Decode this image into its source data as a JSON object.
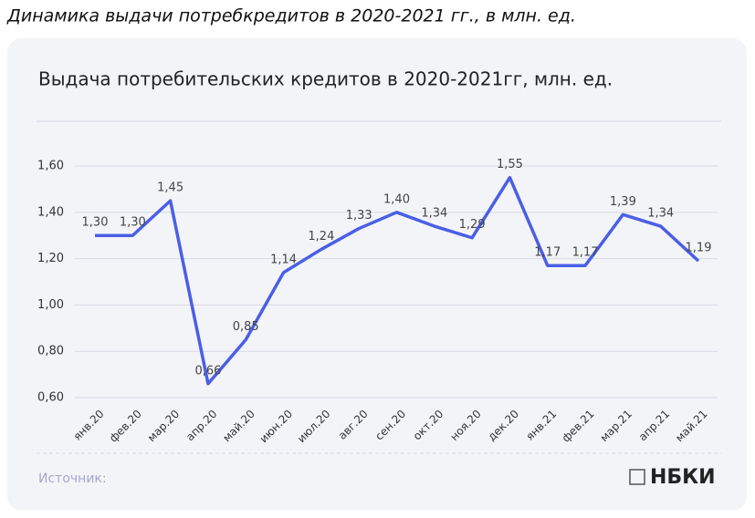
{
  "page_title": "Динамика выдачи потребкредитов в 2020-2021 гг., в млн. ед.",
  "source": "Источник:",
  "logo": "НБКИ",
  "chart_data": {
    "type": "line",
    "title": "Выдача потребительских кредитов  в 2020-2021гг,  млн. ед.",
    "categories": [
      "янв.20",
      "фев.20",
      "мар.20",
      "апр.20",
      "май.20",
      "июн.20",
      "июл.20",
      "авг.20",
      "сен.20",
      "окт.20",
      "ноя.20",
      "дек.20",
      "янв.21",
      "фев.21",
      "мар.21",
      "апр.21",
      "май.21"
    ],
    "values": [
      1.3,
      1.3,
      1.45,
      0.66,
      0.85,
      1.14,
      1.24,
      1.33,
      1.4,
      1.34,
      1.29,
      1.55,
      1.17,
      1.17,
      1.39,
      1.34,
      1.19
    ],
    "value_labels": [
      "1,30",
      "1,30",
      "1,45",
      "0,66",
      "0,85",
      "1,14",
      "1,24",
      "1,33",
      "1,40",
      "1,34",
      "1,29",
      "1,55",
      "1,17",
      "1,17",
      "1,39",
      "1,34",
      "1,19"
    ],
    "color": "#4a5fe6",
    "ylim": [
      0.6,
      1.6
    ],
    "yticks": [
      {
        "value": 0.6,
        "label": "0,60"
      },
      {
        "value": 0.8,
        "label": "0,80"
      },
      {
        "value": 1.0,
        "label": "1,00"
      },
      {
        "value": 1.2,
        "label": "1,20"
      },
      {
        "value": 1.4,
        "label": "1,40"
      },
      {
        "value": 1.6,
        "label": "1,60"
      }
    ],
    "grid": true
  }
}
